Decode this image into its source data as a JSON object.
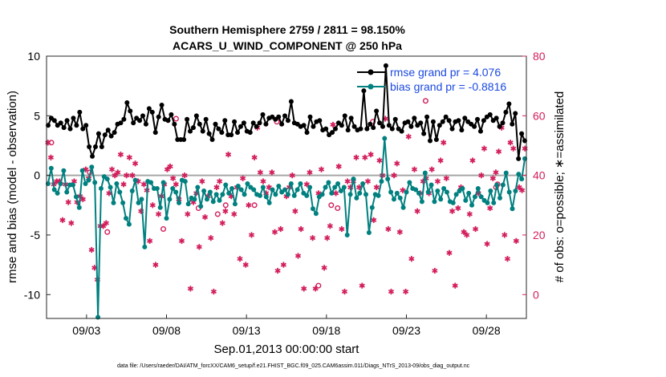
{
  "chart_data": {
    "type": "line",
    "title_line1": "Southern Hemisphere 2759 / 2811 = 98.150%",
    "title_line2": "ACARS_U_WIND_COMPONENT @ 250 hPa",
    "xlabel": "Sep.01,2013 00:00:00 start",
    "ylabel_left": "rmse and bias (model - observation)",
    "ylabel_right": "# of obs: o=possible; ∗=assimilated",
    "xlim": [
      1.0,
      31.0
    ],
    "ylim_left": [
      -12,
      10
    ],
    "ylim_right": [
      -8,
      80
    ],
    "x_ticks": [
      {
        "value": 3.5,
        "label": "09/03"
      },
      {
        "value": 8.5,
        "label": "09/08"
      },
      {
        "value": 13.5,
        "label": "09/13"
      },
      {
        "value": 18.5,
        "label": "09/18"
      },
      {
        "value": 23.5,
        "label": "09/23"
      },
      {
        "value": 28.5,
        "label": "09/28"
      }
    ],
    "y_ticks_left": [
      -10,
      -5,
      0,
      5,
      10
    ],
    "y_ticks_right": [
      0,
      20,
      40,
      60,
      80
    ],
    "colors": {
      "rmse": "#000000",
      "bias": "#00807f",
      "obs": "#d31e5c",
      "zero": "#a6a6a6",
      "legend_text": "#1b49e0"
    },
    "series": [
      {
        "name": "rmse grand pr = 4.076",
        "color": "#000000",
        "values": [
          4.2,
          4.8,
          4.6,
          4.2,
          4.4,
          4.0,
          4.6,
          3.9,
          4.8,
          4.2,
          5.3,
          3.9,
          4.2,
          2.4,
          1.6,
          2.4,
          3.5,
          2.4,
          3.4,
          3.8,
          3.3,
          3.6,
          4.3,
          4.4,
          4.7,
          6.1,
          5.4,
          4.4,
          4.8,
          4.6,
          5.0,
          4.3,
          5.6,
          5.3,
          3.6,
          4.9,
          5.9,
          4.7,
          4.6,
          5.1,
          4.3,
          3.0,
          3.0,
          3.0,
          4.7,
          3.7,
          4.0,
          5.0,
          4.3,
          3.7,
          4.7,
          3.5,
          3.0,
          4.3,
          3.9,
          3.6,
          4.6,
          3.4,
          3.4,
          4.5,
          3.6,
          4.1,
          4.4,
          3.7,
          3.6,
          4.4,
          4.1,
          4.4,
          5.1,
          4.3,
          4.8,
          4.9,
          4.7,
          4.9,
          4.3,
          5.0,
          4.6,
          6.2,
          4.4,
          4.3,
          4.1,
          4.2,
          3.6,
          4.9,
          4.1,
          4.5,
          4.6,
          3.8,
          3.9,
          3.4,
          3.6,
          3.9,
          4.4,
          4.2,
          5.0,
          3.8,
          4.8,
          4.1,
          3.8,
          3.9,
          7.1,
          3.9,
          4.3,
          4.0,
          5.4,
          4.4,
          4.1,
          9.2,
          4.2,
          3.9,
          4.7,
          3.9,
          3.7,
          4.4,
          4.5,
          4.1,
          4.8,
          4.2,
          4.4,
          3.5,
          4.9,
          2.9,
          4.5,
          3.0,
          4.2,
          4.5,
          4.9,
          4.6,
          3.9,
          4.5,
          4.6,
          3.8,
          4.8,
          4.5,
          4.3,
          4.1,
          4.7,
          3.7,
          4.6,
          4.9,
          5.1,
          4.6,
          4.8,
          4.1,
          4.4,
          5.3,
          6.0,
          4.3,
          5.2,
          1.4,
          3.5,
          2.9
        ]
      },
      {
        "name": "bias grand pr = -0.8816",
        "color": "#00807f",
        "values": [
          -0.7,
          0.6,
          -1.2,
          -1.5,
          -0.7,
          0.4,
          -1.4,
          -0.8,
          -0.8,
          -1.8,
          -2.7,
          0.4,
          -0.7,
          -0.4,
          0.7,
          -0.6,
          -11.9,
          -1.1,
          -0.1,
          -0.3,
          -1.0,
          -2.3,
          -0.7,
          -1.4,
          -2.3,
          -3.6,
          -4.1,
          -1.3,
          -0.4,
          -2.3,
          -2.0,
          -6.0,
          -0.5,
          -0.6,
          -1.1,
          -1.1,
          -2.7,
          -0.6,
          -3.6,
          -2.0,
          -1.1,
          -1.4,
          -2.3,
          -0.4,
          -0.5,
          -2.4,
          -1.9,
          -2.0,
          -1.0,
          -2.6,
          -1.3,
          -2.0,
          -1.4,
          -2.2,
          -1.6,
          -2.1,
          -1.6,
          -0.8,
          -1.5,
          -1.1,
          -2.4,
          -0.9,
          -1.2,
          -1.6,
          -0.7,
          -1.0,
          -1.2,
          -1.6,
          -1.7,
          -1.0,
          -1.8,
          -2.3,
          -1.2,
          -1.6,
          -0.9,
          -1.4,
          -1.2,
          -1.6,
          -0.7,
          -1.7,
          -1.2,
          -0.7,
          -1.5,
          -1.7,
          -1.0,
          -2.8,
          -3.2,
          -1.8,
          -1.6,
          -1.0,
          -0.6,
          -1.5,
          -1.0,
          -0.7,
          -1.3,
          -1.0,
          -5.0,
          -1.6,
          -0.3,
          -1.9,
          -1.5,
          -0.7,
          -1.6,
          -4.8,
          -2.7,
          -1.6,
          -1.7,
          -0.5,
          3.1,
          -0.3,
          -1.4,
          -2.0,
          -1.5,
          -1.9,
          -2.7,
          -1.4,
          -0.6,
          -1.1,
          -1.2,
          -1.5,
          -2.2,
          0.2,
          -1.4,
          -0.8,
          -2.2,
          -1.3,
          -2.0,
          -1.1,
          -1.4,
          -2.2,
          -2.3,
          -1.6,
          -1.3,
          -1.1,
          -2.1,
          -1.5,
          -2.5,
          -1.8,
          -1.1,
          -1.8,
          -2.1,
          -2.3,
          -1.3,
          -2.3,
          -0.8,
          -1.9,
          -0.8,
          0.2,
          -1.4,
          -2.8,
          -1.3,
          0.1,
          -0.3,
          1.4
        ]
      }
    ],
    "obs_possible": [
      {
        "x": 1.3,
        "y": 51
      },
      {
        "x": 3.7,
        "y": 41
      },
      {
        "x": 4.8,
        "y": 21
      },
      {
        "x": 8.3,
        "y": 22
      },
      {
        "x": 9.1,
        "y": 59
      },
      {
        "x": 10.5,
        "y": 29
      },
      {
        "x": 11.7,
        "y": 27
      },
      {
        "x": 12.2,
        "y": 30
      },
      {
        "x": 14.0,
        "y": 30
      },
      {
        "x": 15.4,
        "y": 58
      },
      {
        "x": 18.8,
        "y": 30
      },
      {
        "x": 19.2,
        "y": 29
      },
      {
        "x": 18.0,
        "y": 3
      },
      {
        "x": 21.4,
        "y": 58
      },
      {
        "x": 24.7,
        "y": 65
      },
      {
        "x": 29.1,
        "y": 36
      },
      {
        "x": 29.2,
        "y": 37
      }
    ],
    "obs_assimilated": [
      51,
      46,
      37,
      38,
      38,
      25,
      37,
      31,
      24,
      38,
      31,
      33,
      32,
      42,
      39,
      15,
      9,
      5,
      23,
      23,
      24,
      34,
      42,
      40,
      41,
      47,
      37,
      40,
      46,
      40,
      44,
      38,
      28,
      37,
      35,
      18,
      30,
      10,
      27,
      33,
      37,
      42,
      43,
      39,
      37,
      32,
      18,
      40,
      27,
      2,
      31,
      34,
      16,
      38,
      26,
      33,
      19,
      1,
      36,
      38,
      24,
      28,
      47,
      33,
      27,
      36,
      12,
      39,
      10,
      30,
      20,
      46,
      56,
      41,
      38,
      34,
      36,
      41,
      21,
      8,
      22,
      10,
      33,
      36,
      40,
      28,
      13,
      22,
      2,
      37,
      41,
      19,
      2,
      34,
      42,
      9,
      19,
      23,
      57,
      34,
      43,
      22,
      1,
      38,
      36,
      38,
      46,
      36,
      3,
      46,
      38,
      47,
      25,
      36,
      45,
      40,
      59,
      22,
      1,
      40,
      44,
      21,
      35,
      1,
      53,
      12,
      42,
      28,
      34,
      38,
      39,
      34,
      42,
      8,
      38,
      45,
      51,
      39,
      14,
      28,
      3,
      29,
      36,
      21,
      20,
      27,
      45,
      22,
      34,
      40,
      49,
      17,
      29,
      39,
      41,
      48,
      56,
      20,
      12,
      51,
      49,
      18,
      36,
      35,
      49
    ]
  },
  "footer": {
    "data_file": "data file: /Users/raeder/DAI/ATM_forcXX/CAM6_setup/f.e21.FHIST_BGC.f09_025.CAM6assim.011/Diags_NTrS_2013-09/obs_diag_output.nc"
  }
}
